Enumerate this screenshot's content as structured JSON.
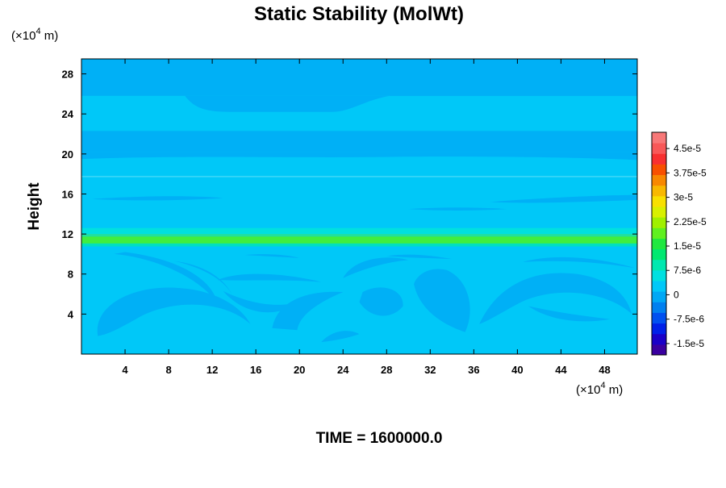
{
  "chart_data": {
    "type": "heatmap",
    "title": "Static Stability (MolWt)",
    "ylabel": "Height",
    "x_unit_label": "(×10",
    "x_unit_exp": "4",
    "x_unit_tail": " m)",
    "y_unit_label": "(×10",
    "y_unit_exp": "4",
    "y_unit_tail": " m)",
    "footer": "TIME = 1600000.0",
    "xlim": [
      0,
      51
    ],
    "ylim": [
      0,
      29.5
    ],
    "x_ticks": [
      4,
      8,
      12,
      16,
      20,
      24,
      28,
      32,
      36,
      40,
      44,
      48
    ],
    "y_ticks": [
      4,
      8,
      12,
      16,
      20,
      24,
      28
    ],
    "colorbar": {
      "ticks": [
        {
          "label": "4.5e-5",
          "value": 4.5e-05
        },
        {
          "label": "3.75e-5",
          "value": 3.75e-05
        },
        {
          "label": "3e-5",
          "value": 3e-05
        },
        {
          "label": "2.25e-5",
          "value": 2.25e-05
        },
        {
          "label": "1.5e-5",
          "value": 1.5e-05
        },
        {
          "label": "7.5e-6",
          "value": 7.5e-06
        },
        {
          "label": "0",
          "value": 0
        },
        {
          "label": "-7.5e-6",
          "value": -7.5e-06
        },
        {
          "label": "-1.5e-5",
          "value": -1.5e-05
        }
      ],
      "colors": [
        "#3a00a0",
        "#1a00c8",
        "#0020e8",
        "#0050f0",
        "#0080f0",
        "#00a8f5",
        "#00c8f8",
        "#00e0e0",
        "#00e8b0",
        "#00e870",
        "#20e840",
        "#60f020",
        "#a0f000",
        "#d8f000",
        "#f8e000",
        "#f8b800",
        "#f88800",
        "#f85000",
        "#f83030",
        "#f85858",
        "#f87878"
      ]
    },
    "background_color": "#00c8f8",
    "bands": [
      {
        "y0": 25.8,
        "y1": 29.5,
        "color": "#00b0f6"
      },
      {
        "y0": 22.3,
        "y1": 25.8,
        "color": "#00c8f8"
      },
      {
        "y0": 20.2,
        "y1": 22.3,
        "color": "#00b0f6"
      },
      {
        "y0": 12.6,
        "y1": 20.2,
        "color": "#00c8f8"
      },
      {
        "y0": 12.0,
        "y1": 12.6,
        "color": "#00e0e0"
      },
      {
        "y0": 11.75,
        "y1": 12.0,
        "color": "#20e0a0"
      },
      {
        "y0": 11.05,
        "y1": 11.75,
        "color": "#40ee40"
      },
      {
        "y0": 10.75,
        "y1": 11.05,
        "color": "#00e0c0"
      },
      {
        "y0": 10.2,
        "y1": 10.75,
        "color": "#00c8f8"
      }
    ]
  }
}
